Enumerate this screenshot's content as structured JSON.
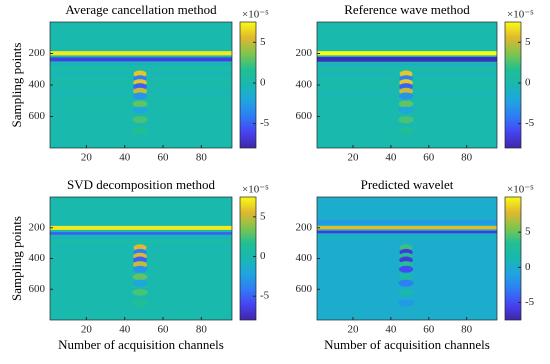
{
  "chart_data": [
    {
      "type": "heatmap",
      "title": "Average cancellation method",
      "ylabel": "Sampling points",
      "xlim": [
        1,
        96
      ],
      "xticks": [
        20,
        40,
        60,
        80
      ],
      "ylim": [
        0,
        800
      ],
      "yticks": [
        200,
        400,
        600
      ],
      "colormap": "parula",
      "clim": [
        -8,
        7.5
      ],
      "cticks": [
        5,
        0,
        -5
      ],
      "colorbar_label": "×10⁻⁵",
      "background": 0,
      "bands": [
        {
          "from": 185,
          "to": 212,
          "value": 7
        },
        {
          "from": 225,
          "to": 250,
          "value": -6.5
        },
        {
          "from": 262,
          "to": 272,
          "value": -1.2
        },
        {
          "from": 290,
          "to": 300,
          "value": 1
        },
        {
          "from": 320,
          "to": 330,
          "value": -1
        },
        {
          "from": 380,
          "to": 390,
          "value": 0.8
        },
        {
          "from": 440,
          "to": 450,
          "value": -0.8
        },
        {
          "from": 510,
          "to": 520,
          "value": 0.7
        }
      ],
      "events": [
        {
          "channel": 48,
          "sample": 330,
          "value": 6
        },
        {
          "channel": 48,
          "sample": 360,
          "value": -4
        },
        {
          "channel": 48,
          "sample": 385,
          "value": 6
        },
        {
          "channel": 48,
          "sample": 410,
          "value": -5
        },
        {
          "channel": 48,
          "sample": 440,
          "value": 5
        },
        {
          "channel": 48,
          "sample": 470,
          "value": -3
        },
        {
          "channel": 48,
          "sample": 520,
          "value": 3
        },
        {
          "channel": 48,
          "sample": 560,
          "value": -2
        },
        {
          "channel": 48,
          "sample": 620,
          "value": 2.5
        },
        {
          "channel": 48,
          "sample": 690,
          "value": 1.5
        }
      ]
    },
    {
      "type": "heatmap",
      "title": "Reference wave method",
      "xlim": [
        1,
        96
      ],
      "xticks": [
        20,
        40,
        60,
        80
      ],
      "ylim": [
        0,
        800
      ],
      "yticks": [
        200,
        400,
        600
      ],
      "colormap": "parula",
      "clim": [
        -8,
        7.5
      ],
      "cticks": [
        5,
        0,
        -5
      ],
      "colorbar_label": "×10⁻⁵",
      "background": 0,
      "bands": [
        {
          "from": 185,
          "to": 212,
          "value": 7.5
        },
        {
          "from": 222,
          "to": 252,
          "value": -7.5
        },
        {
          "from": 265,
          "to": 275,
          "value": -1.5
        },
        {
          "from": 295,
          "to": 305,
          "value": 1.2
        },
        {
          "from": 325,
          "to": 335,
          "value": -1
        },
        {
          "from": 390,
          "to": 400,
          "value": 0.8
        },
        {
          "from": 450,
          "to": 460,
          "value": -0.8
        }
      ],
      "events": [
        {
          "channel": 48,
          "sample": 330,
          "value": 6
        },
        {
          "channel": 48,
          "sample": 360,
          "value": -4
        },
        {
          "channel": 48,
          "sample": 385,
          "value": 6
        },
        {
          "channel": 48,
          "sample": 410,
          "value": -5
        },
        {
          "channel": 48,
          "sample": 440,
          "value": 5
        },
        {
          "channel": 48,
          "sample": 470,
          "value": -3
        },
        {
          "channel": 48,
          "sample": 520,
          "value": 3
        },
        {
          "channel": 48,
          "sample": 560,
          "value": -2
        },
        {
          "channel": 48,
          "sample": 620,
          "value": 2.5
        },
        {
          "channel": 48,
          "sample": 690,
          "value": 1.5
        }
      ]
    },
    {
      "type": "heatmap",
      "title": "SVD decomposition method",
      "ylabel": "Sampling points",
      "xlabel": "Number of acquisition channels",
      "xlim": [
        1,
        96
      ],
      "xticks": [
        20,
        40,
        60,
        80
      ],
      "ylim": [
        0,
        800
      ],
      "yticks": [
        200,
        400,
        600
      ],
      "colormap": "parula",
      "clim": [
        -8,
        7.5
      ],
      "cticks": [
        5,
        0,
        -5
      ],
      "colorbar_label": "×10⁻⁵",
      "background": 0,
      "bands": [
        {
          "from": 188,
          "to": 214,
          "value": 7
        },
        {
          "from": 228,
          "to": 246,
          "value": -5
        },
        {
          "from": 262,
          "to": 272,
          "value": -1
        },
        {
          "from": 292,
          "to": 302,
          "value": 1
        },
        {
          "from": 330,
          "to": 340,
          "value": -0.8
        }
      ],
      "events": [
        {
          "channel": 48,
          "sample": 330,
          "value": 5.5
        },
        {
          "channel": 48,
          "sample": 360,
          "value": -4
        },
        {
          "channel": 48,
          "sample": 385,
          "value": 5.5
        },
        {
          "channel": 48,
          "sample": 410,
          "value": -5
        },
        {
          "channel": 48,
          "sample": 440,
          "value": 5
        },
        {
          "channel": 48,
          "sample": 470,
          "value": -3
        },
        {
          "channel": 48,
          "sample": 520,
          "value": 3
        },
        {
          "channel": 48,
          "sample": 560,
          "value": -2
        },
        {
          "channel": 48,
          "sample": 620,
          "value": 2.5
        },
        {
          "channel": 48,
          "sample": 690,
          "value": 1.5
        }
      ]
    },
    {
      "type": "heatmap",
      "title": "Predicted wavelet",
      "xlabel": "Number of acquisition channels",
      "xlim": [
        1,
        96
      ],
      "xticks": [
        20,
        40,
        60,
        80
      ],
      "ylim": [
        0,
        800
      ],
      "yticks": [
        200,
        400,
        600
      ],
      "colormap": "parula",
      "clim": [
        -7.5,
        10
      ],
      "cticks": [
        5,
        0,
        -5
      ],
      "colorbar_label": "×10⁻⁵",
      "background": 0,
      "bands": [
        {
          "from": 150,
          "to": 180,
          "value": -1.5
        },
        {
          "from": 188,
          "to": 210,
          "value": 8
        },
        {
          "from": 220,
          "to": 236,
          "value": -6
        },
        {
          "from": 262,
          "to": 272,
          "value": 1
        }
      ],
      "events": [
        {
          "channel": 48,
          "sample": 330,
          "value": 4
        },
        {
          "channel": 48,
          "sample": 360,
          "value": -6
        },
        {
          "channel": 48,
          "sample": 385,
          "value": 3
        },
        {
          "channel": 48,
          "sample": 410,
          "value": -6
        },
        {
          "channel": 48,
          "sample": 440,
          "value": 3
        },
        {
          "channel": 48,
          "sample": 470,
          "value": -5
        },
        {
          "channel": 48,
          "sample": 520,
          "value": 2
        },
        {
          "channel": 48,
          "sample": 560,
          "value": -3
        },
        {
          "channel": 48,
          "sample": 620,
          "value": 1.5
        },
        {
          "channel": 48,
          "sample": 690,
          "value": -1.5
        }
      ]
    }
  ]
}
